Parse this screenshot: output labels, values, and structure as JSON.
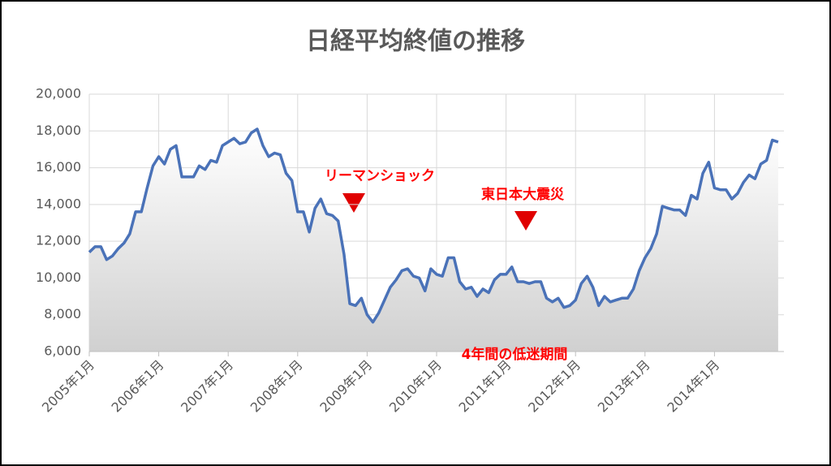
{
  "chart_data": {
    "type": "area-line",
    "title": "日経平均終値の推移",
    "x": [
      "2005-01",
      "2005-02",
      "2005-03",
      "2005-04",
      "2005-05",
      "2005-06",
      "2005-07",
      "2005-08",
      "2005-09",
      "2005-10",
      "2005-11",
      "2005-12",
      "2006-01",
      "2006-02",
      "2006-03",
      "2006-04",
      "2006-05",
      "2006-06",
      "2006-07",
      "2006-08",
      "2006-09",
      "2006-10",
      "2006-11",
      "2006-12",
      "2007-01",
      "2007-02",
      "2007-03",
      "2007-04",
      "2007-05",
      "2007-06",
      "2007-07",
      "2007-08",
      "2007-09",
      "2007-10",
      "2007-11",
      "2007-12",
      "2008-01",
      "2008-02",
      "2008-03",
      "2008-04",
      "2008-05",
      "2008-06",
      "2008-07",
      "2008-08",
      "2008-09",
      "2008-10",
      "2008-11",
      "2008-12",
      "2009-01",
      "2009-02",
      "2009-03",
      "2009-04",
      "2009-05",
      "2009-06",
      "2009-07",
      "2009-08",
      "2009-09",
      "2009-10",
      "2009-11",
      "2009-12",
      "2010-01",
      "2010-02",
      "2010-03",
      "2010-04",
      "2010-05",
      "2010-06",
      "2010-07",
      "2010-08",
      "2010-09",
      "2010-10",
      "2010-11",
      "2010-12",
      "2011-01",
      "2011-02",
      "2011-03",
      "2011-04",
      "2011-05",
      "2011-06",
      "2011-07",
      "2011-08",
      "2011-09",
      "2011-10",
      "2011-11",
      "2011-12",
      "2012-01",
      "2012-02",
      "2012-03",
      "2012-04",
      "2012-05",
      "2012-06",
      "2012-07",
      "2012-08",
      "2012-09",
      "2012-10",
      "2012-11",
      "2012-12",
      "2013-01",
      "2013-02",
      "2013-03",
      "2013-04",
      "2013-05",
      "2013-06",
      "2013-07",
      "2013-08",
      "2013-09",
      "2013-10",
      "2013-11",
      "2013-12",
      "2014-01",
      "2014-02",
      "2014-03",
      "2014-04",
      "2014-05",
      "2014-06",
      "2014-07",
      "2014-08",
      "2014-09",
      "2014-10",
      "2014-11",
      "2014-12"
    ],
    "series": [
      {
        "color": "#4a72b8",
        "values": [
          11400,
          11700,
          11700,
          11000,
          11200,
          11600,
          11900,
          12400,
          13600,
          13600,
          14900,
          16100,
          16600,
          16200,
          17000,
          17200,
          15500,
          15500,
          15500,
          16100,
          15900,
          16400,
          16300,
          17200,
          17400,
          17600,
          17300,
          17400,
          17900,
          18100,
          17200,
          16600,
          16800,
          16700,
          15700,
          15300,
          13600,
          13600,
          12500,
          13800,
          14300,
          13500,
          13400,
          13100,
          11300,
          8600,
          8500,
          8900,
          8000,
          7600,
          8100,
          8800,
          9500,
          9900,
          10400,
          10500,
          10100,
          10000,
          9300,
          10500,
          10200,
          10100,
          11100,
          11100,
          9800,
          9400,
          9500,
          9000,
          9400,
          9200,
          9900,
          10200,
          10200,
          10600,
          9800,
          9800,
          9700,
          9800,
          9800,
          8900,
          8700,
          8900,
          8400,
          8500,
          8800,
          9700,
          10100,
          9500,
          8500,
          9000,
          8700,
          8800,
          8900,
          8900,
          9400,
          10400,
          11100,
          11600,
          12400,
          13900,
          13800,
          13700,
          13700,
          13400,
          14500,
          14300,
          15700,
          16300,
          14900,
          14800,
          14800,
          14300,
          14600,
          15200,
          15600,
          15400,
          16200,
          16400,
          17500,
          17400
        ]
      }
    ],
    "xlim": [
      "2005-01",
      "2015-01"
    ],
    "xticks": [
      {
        "value": "2005-01",
        "label": "2005年1月"
      },
      {
        "value": "2006-01",
        "label": "2006年1月"
      },
      {
        "value": "2007-01",
        "label": "2007年1月"
      },
      {
        "value": "2008-01",
        "label": "2008年1月"
      },
      {
        "value": "2009-01",
        "label": "2009年1月"
      },
      {
        "value": "2010-01",
        "label": "2010年1月"
      },
      {
        "value": "2011-01",
        "label": "2011年1月"
      },
      {
        "value": "2012-01",
        "label": "2012年1月"
      },
      {
        "value": "2013-01",
        "label": "2013年1月"
      },
      {
        "value": "2014-01",
        "label": "2014年1月"
      }
    ],
    "ylim": [
      6000,
      20000
    ],
    "yticks": [
      {
        "value": 6000,
        "label": "6,000"
      },
      {
        "value": 8000,
        "label": "8,000"
      },
      {
        "value": 10000,
        "label": "10,000"
      },
      {
        "value": 12000,
        "label": "12,000"
      },
      {
        "value": 14000,
        "label": "14,000"
      },
      {
        "value": 16000,
        "label": "16,000"
      },
      {
        "value": 18000,
        "label": "18,000"
      },
      {
        "value": 20000,
        "label": "20,000"
      }
    ],
    "grid": true,
    "annotations": [
      "リーマンショック",
      "東日本大震災",
      "4年間の低迷期間"
    ]
  }
}
